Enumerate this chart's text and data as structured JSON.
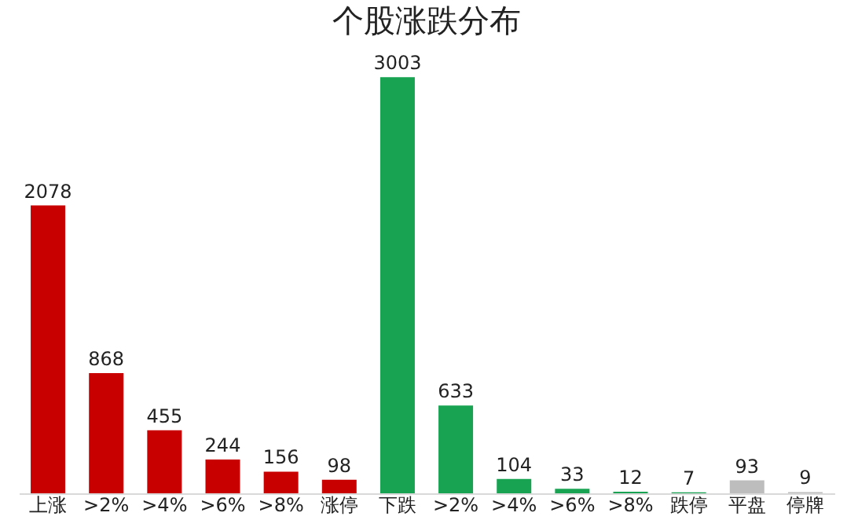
{
  "chart_data": {
    "type": "bar",
    "title": "个股涨跌分布",
    "categories": [
      "上涨",
      ">2%",
      ">4%",
      ">6%",
      ">8%",
      "涨停",
      "下跌",
      ">2%",
      ">4%",
      ">6%",
      ">8%",
      "跌停",
      "平盘",
      "停牌"
    ],
    "values": [
      2078,
      868,
      455,
      244,
      156,
      98,
      3003,
      633,
      104,
      33,
      12,
      7,
      93,
      9
    ],
    "colors": [
      "#c80000",
      "#c80000",
      "#c80000",
      "#c80000",
      "#c80000",
      "#c80000",
      "#17a352",
      "#17a352",
      "#17a352",
      "#17a352",
      "#17a352",
      "#17a352",
      "#bdbdbd",
      "#bdbdbd"
    ],
    "data_labels": true
  }
}
